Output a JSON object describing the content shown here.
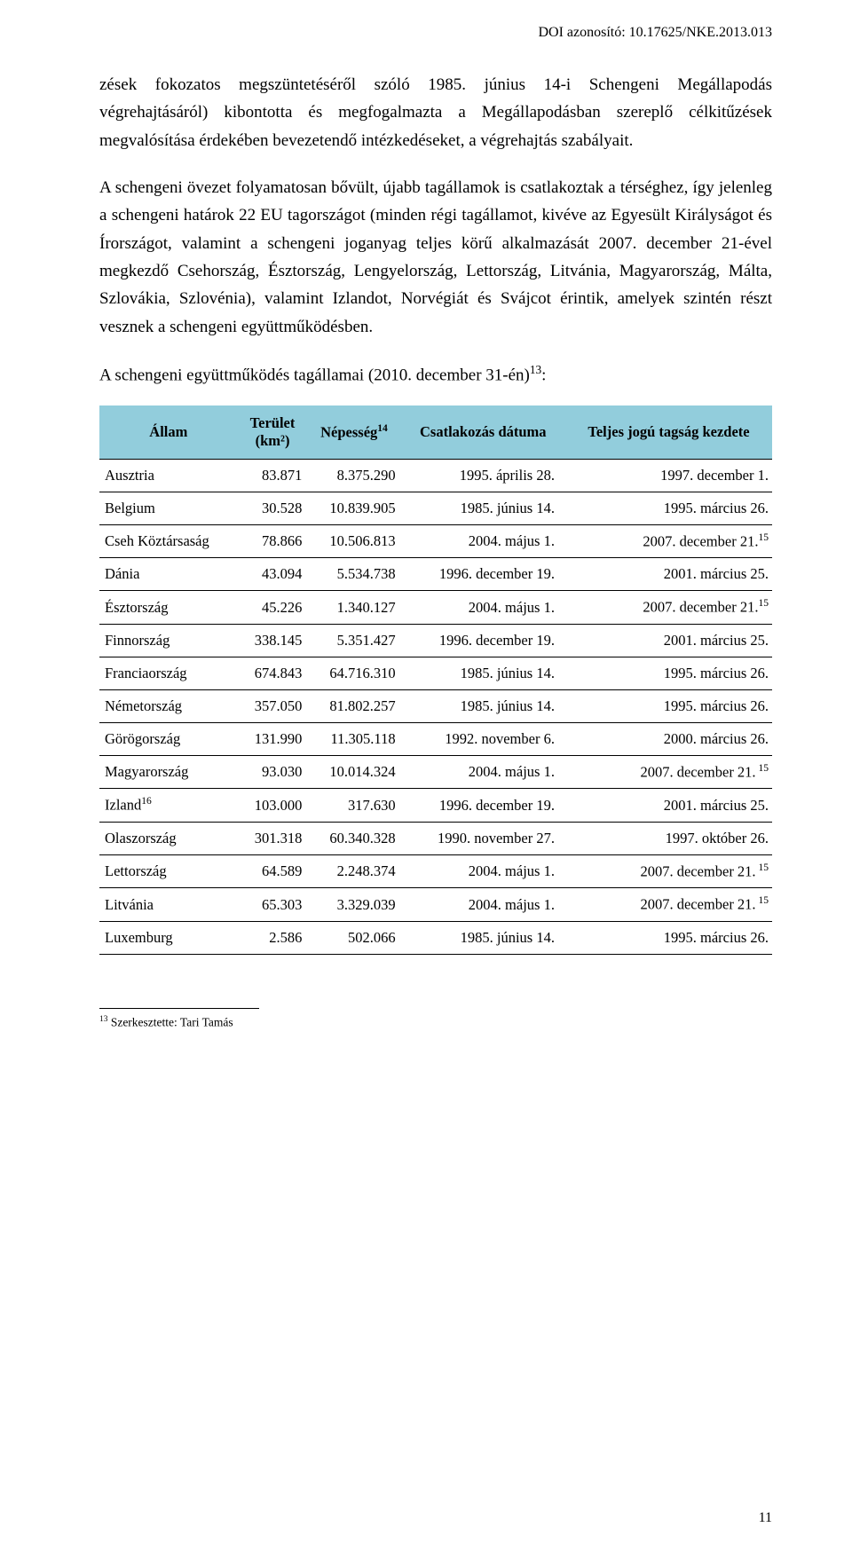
{
  "doi": "DOI azonosító: 10.17625/NKE.2013.013",
  "paragraphs": {
    "p1": "zések fokozatos megszüntetéséről szóló 1985. június 14-i Schengeni Megállapodás végrehajtásáról) kibontotta és megfogalmazta a Megállapodásban szereplő célkitűzések megvalósítása érdekében bevezetendő intézkedéseket, a végrehajtás szabályait.",
    "p2": "A schengeni övezet folyamatosan bővült, újabb tagállamok is csatlakoztak a térséghez, így jelenleg a schengeni határok 22 EU tagországot (minden régi tagállamot, kivéve az Egyesült Királyságot és Írországot, valamint a schengeni joganyag teljes körű alkalmazását 2007. december 21-ével megkezdő Csehország, Észtország, Lengyelország, Lettország, Litvánia, Magyarország, Málta, Szlovákia, Szlovénia), valamint Izlandot, Norvégiát és Svájcot érintik, amelyek szintén részt vesznek a schengeni együttműködésben.",
    "section_title_a": "A schengeni együttműködés tagállamai (2010. december 31-én)",
    "section_title_sup": "13",
    "section_title_b": ":"
  },
  "table": {
    "headers": {
      "state": "Állam",
      "area_a": "Terület",
      "area_b": "(km²)",
      "pop_a": "Népesség",
      "pop_sup": "14",
      "accession": "Csatlakozás dátuma",
      "full": "Teljes jogú tagság kezdete"
    },
    "rows": [
      {
        "name": "Ausztria",
        "name_sup": "",
        "area": "83.871",
        "pop": "8.375.290",
        "acc": "1995. április 28.",
        "full": "1997. december 1.",
        "full_sup": ""
      },
      {
        "name": "Belgium",
        "name_sup": "",
        "area": "30.528",
        "pop": "10.839.905",
        "acc": "1985. június 14.",
        "full": "1995. március 26.",
        "full_sup": ""
      },
      {
        "name": "Cseh Köztársaság",
        "name_sup": "",
        "area": "78.866",
        "pop": "10.506.813",
        "acc": "2004. május 1.",
        "full": "2007. december 21.",
        "full_sup": "15"
      },
      {
        "name": "Dánia",
        "name_sup": "",
        "area": "43.094",
        "pop": "5.534.738",
        "acc": "1996. december 19.",
        "full": "2001. március 25.",
        "full_sup": ""
      },
      {
        "name": "Észtország",
        "name_sup": "",
        "area": "45.226",
        "pop": "1.340.127",
        "acc": "2004. május 1.",
        "full": "2007. december 21.",
        "full_sup": "15"
      },
      {
        "name": "Finnország",
        "name_sup": "",
        "area": "338.145",
        "pop": "5.351.427",
        "acc": "1996. december 19.",
        "full": "2001. március 25.",
        "full_sup": ""
      },
      {
        "name": "Franciaország",
        "name_sup": "",
        "area": "674.843",
        "pop": "64.716.310",
        "acc": "1985. június 14.",
        "full": "1995. március 26.",
        "full_sup": ""
      },
      {
        "name": "Németország",
        "name_sup": "",
        "area": "357.050",
        "pop": "81.802.257",
        "acc": "1985. június 14.",
        "full": "1995. március 26.",
        "full_sup": ""
      },
      {
        "name": "Görögország",
        "name_sup": "",
        "area": "131.990",
        "pop": "11.305.118",
        "acc": "1992. november 6.",
        "full": "2000. március 26.",
        "full_sup": ""
      },
      {
        "name": "Magyarország",
        "name_sup": "",
        "area": "93.030",
        "pop": "10.014.324",
        "acc": "2004. május 1.",
        "full": "2007. december 21.",
        "full_sup": " 15"
      },
      {
        "name": "Izland",
        "name_sup": "16",
        "area": "103.000",
        "pop": "317.630",
        "acc": "1996. december 19.",
        "full": "2001. március 25.",
        "full_sup": ""
      },
      {
        "name": "Olaszország",
        "name_sup": "",
        "area": "301.318",
        "pop": "60.340.328",
        "acc": "1990. november 27.",
        "full": "1997. október 26.",
        "full_sup": ""
      },
      {
        "name": "Lettország",
        "name_sup": "",
        "area": "64.589",
        "pop": "2.248.374",
        "acc": "2004. május 1.",
        "full": "2007. december 21.",
        "full_sup": " 15"
      },
      {
        "name": "Litvánia",
        "name_sup": "",
        "area": "65.303",
        "pop": "3.329.039",
        "acc": "2004. május 1.",
        "full": "2007. december 21.",
        "full_sup": " 15"
      },
      {
        "name": "Luxemburg",
        "name_sup": "",
        "area": "2.586",
        "pop": "502.066",
        "acc": "1985. június 14.",
        "full": "1995. március 26.",
        "full_sup": ""
      }
    ]
  },
  "footnote": {
    "sup": "13",
    "text": " Szerkesztette: Tari Tamás"
  },
  "pagenum": "11"
}
